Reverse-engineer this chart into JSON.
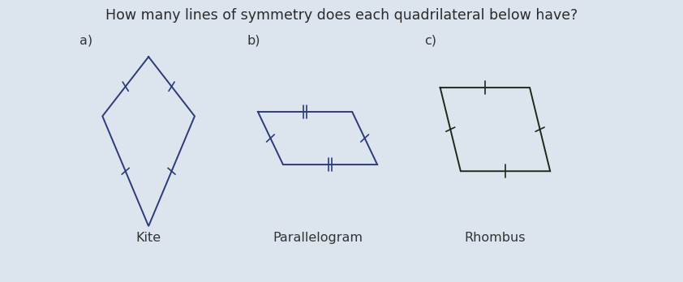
{
  "title": "How many lines of symmetry does each quadrilateral below have?",
  "title_fontsize": 12.5,
  "title_color": "#2a2a2a",
  "background_color": "#dce4ed",
  "panel_a_color": "#d0dce8",
  "panel_b_color": "#cfe0d8",
  "panel_c_color": "#d4e8e0",
  "labels": [
    "a)",
    "b)",
    "c)"
  ],
  "shape_labels": [
    "Kite",
    "Parallelogram",
    "Rhombus"
  ],
  "shape_label_fontsize": 11.5,
  "label_fontsize": 11.5,
  "kite_color": "#2a3a7a",
  "parallelogram_color": "#2a3a7a",
  "rhombus_color": "#1a2a1a",
  "linewidth": 1.4
}
